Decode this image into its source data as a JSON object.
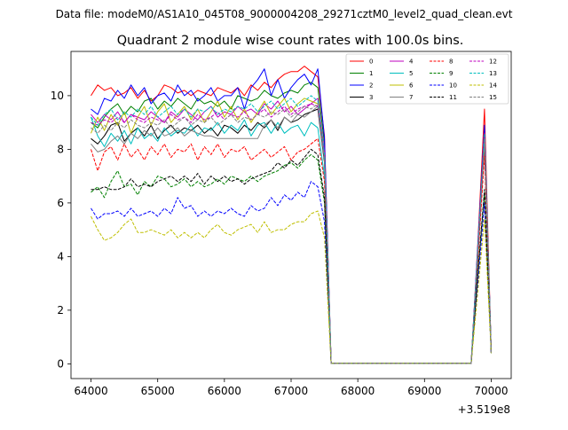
{
  "header": {
    "suptitle": "Data file: modeM0/AS1A10_045T08_9000004208_29271cztM0_level2_quad_clean.evt",
    "title": "Quadrant 2 module wise count rates with 100.0s bins.",
    "offset_label": "+3.519e8"
  },
  "chart_data": {
    "type": "line",
    "title": "Quadrant 2 module wise count rates with 100.0s bins.",
    "xlabel": "",
    "ylabel": "",
    "xlim": [
      63700,
      70300
    ],
    "ylim": [
      -0.55,
      11.65
    ],
    "x_offset_label": "+3.519e8",
    "grid": false,
    "legend_placement": "top-right",
    "legend_columns": 4,
    "xticks": [
      64000,
      65000,
      66000,
      67000,
      68000,
      69000,
      70000
    ],
    "yticks": [
      0,
      2,
      4,
      6,
      8,
      10
    ],
    "x": [
      64000,
      64100,
      64200,
      64300,
      64400,
      64500,
      64600,
      64700,
      64800,
      64900,
      65000,
      65100,
      65200,
      65300,
      65400,
      65500,
      65600,
      65700,
      65800,
      65900,
      66000,
      66100,
      66200,
      66300,
      66400,
      66500,
      66600,
      66700,
      66800,
      66900,
      67000,
      67100,
      67200,
      67300,
      67400,
      67500,
      67600,
      67700,
      67800,
      67900,
      68000,
      68100,
      68200,
      68300,
      68400,
      68500,
      68600,
      68700,
      68800,
      68900,
      69000,
      69100,
      69200,
      69300,
      69400,
      69500,
      69600,
      69700,
      69800,
      69900,
      70000
    ],
    "series": [
      {
        "name": "0",
        "color": "#ff0000",
        "dash": "solid",
        "values": [
          10.0,
          10.4,
          10.2,
          10.3,
          10.0,
          10.1,
          10.3,
          9.9,
          10.2,
          9.8,
          10.0,
          10.4,
          10.3,
          10.1,
          10.2,
          10.0,
          10.2,
          10.1,
          10.0,
          10.3,
          10.2,
          10.1,
          10.3,
          10.0,
          10.4,
          10.2,
          10.5,
          10.3,
          10.6,
          10.8,
          10.9,
          10.9,
          11.1,
          10.9,
          10.7,
          8.5,
          0.02,
          0.02,
          0.02,
          0.02,
          0.02,
          0.02,
          0.02,
          0.02,
          0.02,
          0.02,
          0.02,
          0.02,
          0.02,
          0.02,
          0.02,
          0.02,
          0.02,
          0.02,
          0.02,
          0.02,
          0.02,
          0.02,
          4.5,
          9.5,
          0.4
        ]
      },
      {
        "name": "1",
        "color": "#008000",
        "dash": "solid",
        "values": [
          9.0,
          8.8,
          9.2,
          9.5,
          9.7,
          9.3,
          9.6,
          9.4,
          9.8,
          9.9,
          9.5,
          9.8,
          9.6,
          9.9,
          9.7,
          9.5,
          9.9,
          9.7,
          9.8,
          9.6,
          9.8,
          9.5,
          10.0,
          9.9,
          9.8,
          9.9,
          10.2,
          10.0,
          9.9,
          10.1,
          10.2,
          10.1,
          10.4,
          10.5,
          10.3,
          8.2,
          0.02,
          0.02,
          0.02,
          0.02,
          0.02,
          0.02,
          0.02,
          0.02,
          0.02,
          0.02,
          0.02,
          0.02,
          0.02,
          0.02,
          0.02,
          0.02,
          0.02,
          0.02,
          0.02,
          0.02,
          0.02,
          0.02,
          4.3,
          8.7,
          0.4
        ]
      },
      {
        "name": "2",
        "color": "#0000ff",
        "dash": "solid",
        "values": [
          9.5,
          9.3,
          9.9,
          9.8,
          10.2,
          9.9,
          10.4,
          10.0,
          10.3,
          9.7,
          10.0,
          10.1,
          9.8,
          10.4,
          10.0,
          10.2,
          9.8,
          10.0,
          10.3,
          9.8,
          10.0,
          10.0,
          10.3,
          9.5,
          10.3,
          10.6,
          11.0,
          10.0,
          10.6,
          9.9,
          10.3,
          10.6,
          10.8,
          10.4,
          11.0,
          8.4,
          0.02,
          0.02,
          0.02,
          0.02,
          0.02,
          0.02,
          0.02,
          0.02,
          0.02,
          0.02,
          0.02,
          0.02,
          0.02,
          0.02,
          0.02,
          0.02,
          0.02,
          0.02,
          0.02,
          0.02,
          0.02,
          0.02,
          4.4,
          8.9,
          0.4
        ]
      },
      {
        "name": "3",
        "color": "#000000",
        "dash": "solid",
        "values": [
          8.4,
          8.2,
          8.5,
          8.9,
          9.0,
          8.3,
          8.6,
          8.8,
          8.5,
          8.9,
          8.4,
          8.7,
          8.9,
          8.6,
          8.8,
          8.7,
          8.9,
          8.6,
          8.8,
          8.5,
          8.9,
          8.8,
          8.6,
          8.9,
          8.7,
          9.0,
          8.8,
          9.1,
          8.7,
          9.2,
          9.0,
          9.1,
          9.3,
          9.4,
          9.5,
          7.5,
          0.02,
          0.02,
          0.02,
          0.02,
          0.02,
          0.02,
          0.02,
          0.02,
          0.02,
          0.02,
          0.02,
          0.02,
          0.02,
          0.02,
          0.02,
          0.02,
          0.02,
          0.02,
          0.02,
          0.02,
          0.02,
          0.02,
          4.0,
          8.2,
          0.4
        ]
      },
      {
        "name": "4",
        "color": "#bf00bf",
        "dash": "solid",
        "values": [
          9.3,
          9.0,
          9.3,
          9.1,
          9.4,
          9.0,
          9.3,
          9.2,
          9.1,
          9.4,
          9.2,
          9.0,
          9.4,
          9.2,
          9.5,
          9.3,
          9.1,
          9.4,
          9.6,
          9.2,
          9.4,
          9.3,
          9.6,
          9.4,
          9.5,
          9.3,
          9.7,
          9.5,
          9.8,
          9.4,
          9.6,
          9.3,
          9.5,
          9.7,
          9.9,
          7.9,
          0.02,
          0.02,
          0.02,
          0.02,
          0.02,
          0.02,
          0.02,
          0.02,
          0.02,
          0.02,
          0.02,
          0.02,
          0.02,
          0.02,
          0.02,
          0.02,
          0.02,
          0.02,
          0.02,
          0.02,
          0.02,
          0.02,
          4.2,
          8.6,
          0.4
        ]
      },
      {
        "name": "5",
        "color": "#00bfbf",
        "dash": "solid",
        "values": [
          9.2,
          8.5,
          8.1,
          8.6,
          8.3,
          8.7,
          8.2,
          8.8,
          8.4,
          8.6,
          8.3,
          8.8,
          8.5,
          8.7,
          8.6,
          8.9,
          8.5,
          8.8,
          8.7,
          9.0,
          8.6,
          8.9,
          8.7,
          9.1,
          8.5,
          8.9,
          9.0,
          8.6,
          9.0,
          8.6,
          8.8,
          8.9,
          8.5,
          9.0,
          8.8,
          7.0,
          0.02,
          0.02,
          0.02,
          0.02,
          0.02,
          0.02,
          0.02,
          0.02,
          0.02,
          0.02,
          0.02,
          0.02,
          0.02,
          0.02,
          0.02,
          0.02,
          0.02,
          0.02,
          0.02,
          0.02,
          0.02,
          0.02,
          4.0,
          8.5,
          0.4
        ]
      },
      {
        "name": "6",
        "color": "#bfbf00",
        "dash": "solid",
        "values": [
          8.6,
          9.2,
          8.7,
          9.3,
          8.9,
          9.4,
          8.6,
          9.2,
          9.6,
          8.9,
          9.4,
          9.7,
          9.0,
          9.3,
          9.6,
          9.1,
          9.5,
          9.0,
          9.4,
          9.8,
          9.2,
          9.6,
          9.1,
          9.5,
          9.0,
          9.4,
          9.8,
          9.3,
          9.6,
          9.9,
          9.4,
          9.7,
          9.9,
          9.8,
          9.7,
          7.7,
          0.02,
          0.02,
          0.02,
          0.02,
          0.02,
          0.02,
          0.02,
          0.02,
          0.02,
          0.02,
          0.02,
          0.02,
          0.02,
          0.02,
          0.02,
          0.02,
          0.02,
          0.02,
          0.02,
          0.02,
          0.02,
          0.02,
          4.1,
          8.4,
          0.4
        ]
      },
      {
        "name": "7",
        "color": "#808080",
        "dash": "solid",
        "values": [
          8.2,
          7.9,
          8.0,
          8.3,
          8.5,
          8.2,
          8.6,
          8.4,
          8.7,
          8.5,
          8.8,
          8.5,
          8.6,
          8.8,
          8.5,
          8.7,
          8.6,
          8.5,
          8.5,
          8.4,
          8.4,
          8.4,
          8.4,
          8.4,
          8.4,
          8.4,
          8.9,
          9.1,
          8.8,
          9.2,
          9.0,
          9.3,
          9.2,
          9.4,
          9.6,
          7.6,
          0.02,
          0.02,
          0.02,
          0.02,
          0.02,
          0.02,
          0.02,
          0.02,
          0.02,
          0.02,
          0.02,
          0.02,
          0.02,
          0.02,
          0.02,
          0.02,
          0.02,
          0.02,
          0.02,
          0.02,
          0.02,
          0.02,
          4.1,
          8.3,
          0.4
        ]
      },
      {
        "name": "8",
        "color": "#ff0000",
        "dash": "dashed",
        "values": [
          8.0,
          7.2,
          7.9,
          8.1,
          7.6,
          8.2,
          7.7,
          8.0,
          7.6,
          8.1,
          7.8,
          8.2,
          7.7,
          8.0,
          7.9,
          8.2,
          7.6,
          8.1,
          7.8,
          8.2,
          7.7,
          8.0,
          7.9,
          8.1,
          7.6,
          7.8,
          8.0,
          7.7,
          7.9,
          8.1,
          7.6,
          7.9,
          8.0,
          8.2,
          8.4,
          6.8,
          0.02,
          0.02,
          0.02,
          0.02,
          0.02,
          0.02,
          0.02,
          0.02,
          0.02,
          0.02,
          0.02,
          0.02,
          0.02,
          0.02,
          0.02,
          0.02,
          0.02,
          0.02,
          0.02,
          0.02,
          0.02,
          0.02,
          3.8,
          7.8,
          0.4
        ]
      },
      {
        "name": "9",
        "color": "#008000",
        "dash": "dashed",
        "values": [
          6.4,
          6.6,
          6.2,
          6.8,
          7.2,
          6.6,
          6.7,
          6.3,
          6.8,
          6.6,
          7.0,
          6.9,
          6.6,
          6.7,
          6.9,
          6.6,
          6.8,
          6.6,
          6.7,
          6.9,
          6.7,
          7.0,
          6.9,
          6.8,
          7.0,
          6.8,
          7.0,
          7.1,
          7.2,
          7.4,
          7.5,
          7.3,
          7.6,
          7.8,
          7.6,
          6.0,
          0.02,
          0.02,
          0.02,
          0.02,
          0.02,
          0.02,
          0.02,
          0.02,
          0.02,
          0.02,
          0.02,
          0.02,
          0.02,
          0.02,
          0.02,
          0.02,
          0.02,
          0.02,
          0.02,
          0.02,
          0.02,
          0.02,
          3.3,
          6.4,
          0.4
        ]
      },
      {
        "name": "10",
        "color": "#0000ff",
        "dash": "dashed",
        "values": [
          5.8,
          5.4,
          5.6,
          5.6,
          5.7,
          5.5,
          5.8,
          5.5,
          5.6,
          5.7,
          5.5,
          5.8,
          5.6,
          6.2,
          5.8,
          5.9,
          5.5,
          5.7,
          5.5,
          5.7,
          5.6,
          5.8,
          5.6,
          5.5,
          5.9,
          5.7,
          5.8,
          6.2,
          5.9,
          6.3,
          6.1,
          6.4,
          6.2,
          6.8,
          6.6,
          5.3,
          0.02,
          0.02,
          0.02,
          0.02,
          0.02,
          0.02,
          0.02,
          0.02,
          0.02,
          0.02,
          0.02,
          0.02,
          0.02,
          0.02,
          0.02,
          0.02,
          0.02,
          0.02,
          0.02,
          0.02,
          0.02,
          0.02,
          3.0,
          6.0,
          0.4
        ]
      },
      {
        "name": "11",
        "color": "#000000",
        "dash": "dashed",
        "values": [
          6.5,
          6.5,
          6.6,
          6.5,
          6.5,
          6.6,
          6.9,
          6.6,
          6.7,
          6.6,
          6.8,
          6.9,
          7.0,
          6.8,
          7.0,
          6.8,
          7.1,
          6.7,
          7.0,
          6.8,
          7.0,
          6.8,
          6.9,
          6.7,
          6.9,
          7.0,
          7.1,
          7.2,
          7.5,
          7.3,
          7.6,
          7.4,
          7.7,
          8.0,
          7.8,
          6.2,
          0.02,
          0.02,
          0.02,
          0.02,
          0.02,
          0.02,
          0.02,
          0.02,
          0.02,
          0.02,
          0.02,
          0.02,
          0.02,
          0.02,
          0.02,
          0.02,
          0.02,
          0.02,
          0.02,
          0.02,
          0.02,
          0.02,
          3.4,
          6.5,
          0.4
        ]
      },
      {
        "name": "12",
        "color": "#bf00bf",
        "dash": "dashed",
        "values": [
          9.0,
          8.9,
          9.1,
          9.0,
          9.2,
          9.0,
          9.3,
          9.1,
          9.0,
          9.2,
          9.1,
          9.0,
          9.3,
          9.1,
          9.2,
          9.0,
          9.3,
          9.1,
          9.2,
          9.4,
          9.1,
          9.3,
          9.2,
          9.4,
          9.1,
          9.3,
          9.5,
          9.2,
          9.4,
          9.6,
          9.3,
          9.5,
          9.6,
          9.7,
          9.6,
          7.7,
          0.02,
          0.02,
          0.02,
          0.02,
          0.02,
          0.02,
          0.02,
          0.02,
          0.02,
          0.02,
          0.02,
          0.02,
          0.02,
          0.02,
          0.02,
          0.02,
          0.02,
          0.02,
          0.02,
          0.02,
          0.02,
          0.02,
          4.2,
          8.5,
          0.4
        ]
      },
      {
        "name": "13",
        "color": "#00bfbf",
        "dash": "dashed",
        "values": [
          9.2,
          8.9,
          9.3,
          9.5,
          9.1,
          9.4,
          9.2,
          9.5,
          9.3,
          9.6,
          9.2,
          9.4,
          9.6,
          9.3,
          9.5,
          9.2,
          9.5,
          9.4,
          9.6,
          9.3,
          9.5,
          9.4,
          9.6,
          9.5,
          9.7,
          9.4,
          9.6,
          9.8,
          9.5,
          9.7,
          9.9,
          9.6,
          9.8,
          10.0,
          9.8,
          7.8,
          0.02,
          0.02,
          0.02,
          0.02,
          0.02,
          0.02,
          0.02,
          0.02,
          0.02,
          0.02,
          0.02,
          0.02,
          0.02,
          0.02,
          0.02,
          0.02,
          0.02,
          0.02,
          0.02,
          0.02,
          0.02,
          0.02,
          4.3,
          8.6,
          0.4
        ]
      },
      {
        "name": "14",
        "color": "#bfbf00",
        "dash": "dashed",
        "values": [
          5.5,
          5.0,
          4.6,
          4.7,
          4.9,
          5.2,
          5.4,
          4.9,
          4.9,
          5.0,
          4.9,
          4.8,
          5.0,
          4.7,
          4.9,
          4.7,
          4.9,
          4.7,
          5.0,
          5.2,
          4.9,
          4.8,
          5.0,
          5.1,
          5.2,
          4.9,
          5.3,
          4.9,
          5.0,
          5.0,
          5.2,
          5.3,
          5.3,
          5.6,
          5.7,
          4.7,
          0.02,
          0.02,
          0.02,
          0.02,
          0.02,
          0.02,
          0.02,
          0.02,
          0.02,
          0.02,
          0.02,
          0.02,
          0.02,
          0.02,
          0.02,
          0.02,
          0.02,
          0.02,
          0.02,
          0.02,
          0.02,
          0.02,
          2.7,
          5.4,
          0.4
        ]
      },
      {
        "name": "15",
        "color": "#808080",
        "dash": "dashed",
        "values": [
          8.8,
          8.6,
          8.9,
          8.7,
          9.0,
          8.8,
          9.1,
          8.9,
          8.8,
          9.0,
          8.9,
          9.1,
          8.8,
          9.0,
          9.2,
          8.9,
          9.1,
          9.0,
          9.2,
          8.9,
          9.1,
          9.3,
          9.0,
          9.2,
          9.1,
          9.3,
          9.2,
          9.4,
          9.3,
          9.5,
          9.2,
          9.4,
          9.6,
          9.5,
          9.7,
          7.6,
          0.02,
          0.02,
          0.02,
          0.02,
          0.02,
          0.02,
          0.02,
          0.02,
          0.02,
          0.02,
          0.02,
          0.02,
          0.02,
          0.02,
          0.02,
          0.02,
          0.02,
          0.02,
          0.02,
          0.02,
          0.02,
          0.02,
          4.1,
          8.4,
          0.4
        ]
      }
    ]
  }
}
